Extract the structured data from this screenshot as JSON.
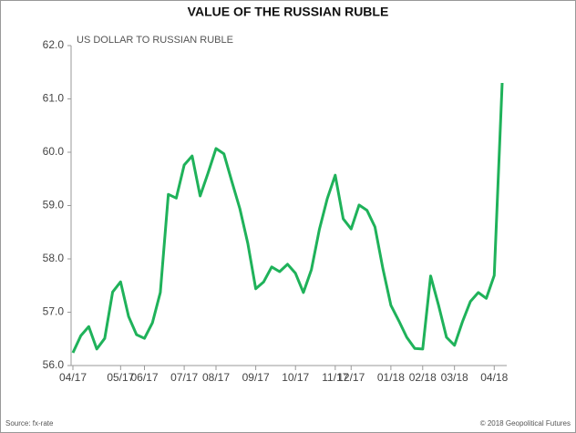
{
  "chart_data": {
    "type": "line",
    "title": "VALUE OF THE RUSSIAN RUBLE",
    "subtitle": "US DOLLAR TO RUSSIAN RUBLE",
    "source": "Source:  fx-rate",
    "credit": "© 2018 Geopolitical Futures",
    "categories": [
      "04/17",
      null,
      null,
      null,
      null,
      null,
      "05/17",
      null,
      null,
      "06/17",
      null,
      null,
      null,
      null,
      "07/17",
      null,
      null,
      null,
      "08/17",
      null,
      null,
      null,
      null,
      "09/17",
      null,
      null,
      null,
      null,
      "10/17",
      null,
      null,
      null,
      null,
      "11/17",
      null,
      "12/17",
      null,
      null,
      null,
      null,
      "01/18",
      null,
      null,
      null,
      "02/18",
      null,
      null,
      null,
      "03/18",
      null,
      null,
      null,
      null,
      "04/18",
      null
    ],
    "series": [
      {
        "name": "USD/RUB",
        "color": "#1fb25a",
        "values": [
          56.24,
          56.56,
          56.73,
          56.31,
          56.51,
          57.38,
          57.57,
          56.92,
          56.58,
          56.51,
          56.8,
          57.37,
          59.21,
          59.14,
          59.76,
          59.93,
          59.18,
          59.61,
          60.07,
          59.97,
          59.45,
          58.94,
          58.29,
          57.44,
          57.57,
          57.85,
          57.76,
          57.9,
          57.73,
          57.37,
          57.8,
          58.55,
          59.13,
          59.57,
          58.75,
          58.56,
          59.01,
          58.91,
          58.6,
          57.81,
          57.13,
          56.84,
          56.53,
          56.32,
          56.31,
          57.68,
          57.13,
          56.53,
          56.38,
          56.82,
          57.2,
          57.37,
          57.26,
          57.69,
          61.3
        ]
      }
    ],
    "ylim": [
      56,
      62
    ],
    "yticks": [
      {
        "value": 56,
        "label": "56.0"
      },
      {
        "value": 57,
        "label": "57.0"
      },
      {
        "value": 58,
        "label": "58.0"
      },
      {
        "value": 59,
        "label": "59.0"
      },
      {
        "value": 60,
        "label": "60.0"
      },
      {
        "value": 61,
        "label": "61.0"
      },
      {
        "value": 62,
        "label": "62.0"
      }
    ],
    "grid": false
  }
}
